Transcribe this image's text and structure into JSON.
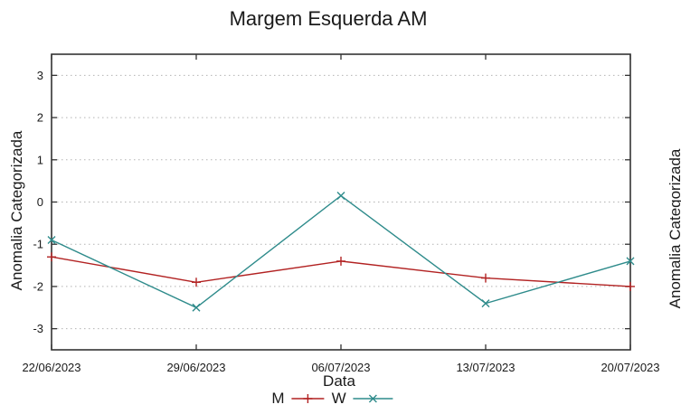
{
  "title": "Margem Esquerda AM",
  "axes": {
    "x_label": "Data",
    "y_label": "Anomalia Categorizada"
  },
  "adjacent_chart": {
    "y_label": "Anomalia Categorizada"
  },
  "colors": {
    "frame": "#333333",
    "grid": "#b3b3b3",
    "text": "#1a1a1a",
    "series_m": "#b22222",
    "series_w": "#2e8b8b"
  },
  "chart_data": {
    "type": "line",
    "title": "Margem Esquerda AM",
    "xlabel": "Data",
    "ylabel": "Anomalia Categorizada",
    "categories": [
      "22/06/2023",
      "29/06/2023",
      "06/07/2023",
      "13/07/2023",
      "20/07/2023"
    ],
    "yticks": [
      3,
      2,
      1,
      0,
      -1,
      -2,
      -3
    ],
    "ylim": [
      -3.5,
      3.5
    ],
    "grid": "horizontal-dotted",
    "legend_position": "bottom-center",
    "series": [
      {
        "name": "M",
        "color": "#b22222",
        "marker": "plus",
        "values": [
          -1.3,
          -1.9,
          -1.4,
          -1.8,
          -2.0
        ]
      },
      {
        "name": "W",
        "color": "#2e8b8b",
        "marker": "cross",
        "values": [
          -0.9,
          -2.5,
          0.15,
          -2.4,
          -1.4
        ]
      }
    ]
  }
}
